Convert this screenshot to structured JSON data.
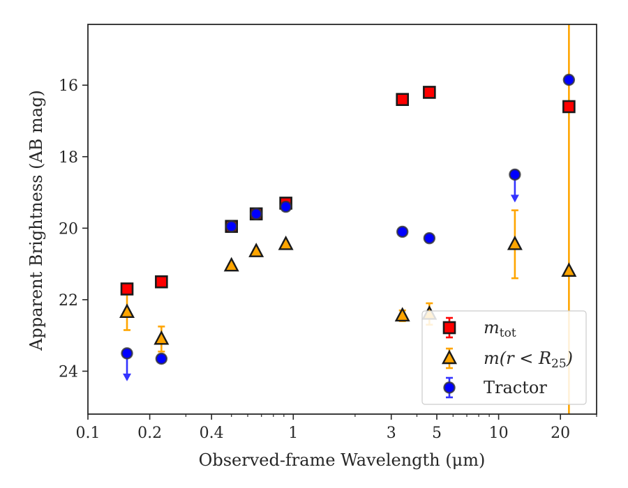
{
  "chart_data": {
    "type": "scatter",
    "xlabel": "Observed-frame Wavelength (μm)",
    "ylabel": "Apparent Brightness (AB mag)",
    "x_scale": "log",
    "xlim": [
      0.1,
      30
    ],
    "ylim": [
      25.2,
      14.3
    ],
    "y_inverted": true,
    "x_ticks": [
      {
        "value": 0.1,
        "label": "0.1"
      },
      {
        "value": 0.2,
        "label": "0.2"
      },
      {
        "value": 0.4,
        "label": "0.4"
      },
      {
        "value": 1,
        "label": "1"
      },
      {
        "value": 3,
        "label": "3"
      },
      {
        "value": 5,
        "label": "5"
      },
      {
        "value": 10,
        "label": "10"
      },
      {
        "value": 20,
        "label": "20"
      }
    ],
    "y_ticks": [
      {
        "value": 16,
        "label": "16"
      },
      {
        "value": 18,
        "label": "18"
      },
      {
        "value": 20,
        "label": "20"
      },
      {
        "value": 22,
        "label": "22"
      },
      {
        "value": 24,
        "label": "24"
      }
    ],
    "grid": false,
    "legend_position": "lower-right",
    "series": [
      {
        "name": "m_tot",
        "label_main": "m",
        "label_sub": "tot",
        "marker": "square",
        "color": "#ff0000",
        "edge_color": "#1a1a1a",
        "error_color": "#ff0000",
        "points": [
          {
            "x": 0.155,
            "y": 21.7,
            "err": 0.05
          },
          {
            "x": 0.228,
            "y": 21.5,
            "err": 0.05
          },
          {
            "x": 0.5,
            "y": 19.95,
            "err": 0.05
          },
          {
            "x": 0.66,
            "y": 19.6,
            "err": 0.05
          },
          {
            "x": 0.92,
            "y": 19.3,
            "err": 0.05
          },
          {
            "x": 3.4,
            "y": 16.4,
            "err": 0.05
          },
          {
            "x": 4.6,
            "y": 16.2,
            "err": 0.05
          },
          {
            "x": 22.0,
            "y": 16.6,
            "err": 0.05
          }
        ]
      },
      {
        "name": "m(r < R_25)",
        "label_main": "m(r < R",
        "label_sub": "25",
        "label_tail": ")",
        "marker": "triangle",
        "color": "#ffa500",
        "edge_color": "#1a1a1a",
        "error_color": "#ffa500",
        "points": [
          {
            "x": 0.155,
            "y": 22.35,
            "err": 0.5
          },
          {
            "x": 0.228,
            "y": 23.1,
            "err": 0.35
          },
          {
            "x": 0.5,
            "y": 21.05,
            "err": 0.05
          },
          {
            "x": 0.66,
            "y": 20.65,
            "err": 0.05
          },
          {
            "x": 0.92,
            "y": 20.45,
            "err": 0.05
          },
          {
            "x": 3.4,
            "y": 22.45,
            "err": 0.15
          },
          {
            "x": 4.6,
            "y": 22.4,
            "err": 0.3
          },
          {
            "x": 12.0,
            "y": 20.45,
            "err": 0.95
          },
          {
            "x": 22.0,
            "y": 21.2,
            "err": 40
          }
        ]
      },
      {
        "name": "Tractor",
        "marker": "circle",
        "color": "#0000ff",
        "edge_color": "#333333",
        "error_color": "#3333ff",
        "points": [
          {
            "x": 0.155,
            "y": 23.5,
            "upper_limit": true
          },
          {
            "x": 0.228,
            "y": 23.65,
            "err": 0.05
          },
          {
            "x": 0.5,
            "y": 19.95,
            "err": 0.05
          },
          {
            "x": 0.66,
            "y": 19.6,
            "err": 0.05
          },
          {
            "x": 0.92,
            "y": 19.4,
            "err": 0.05
          },
          {
            "x": 3.4,
            "y": 20.1,
            "err": 0.05
          },
          {
            "x": 4.6,
            "y": 20.28,
            "err": 0.05
          },
          {
            "x": 12.0,
            "y": 18.5,
            "upper_limit": true
          },
          {
            "x": 22.0,
            "y": 15.85,
            "err": 0.05
          }
        ]
      }
    ]
  }
}
